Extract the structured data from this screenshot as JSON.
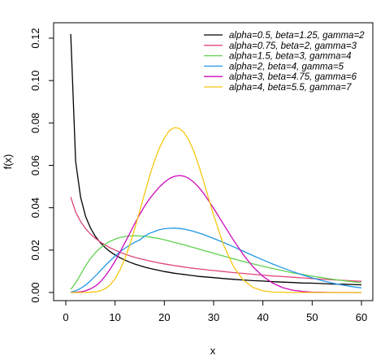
{
  "chart_data": {
    "type": "line",
    "xlabel": "x",
    "ylabel": "f(x)",
    "xlim": [
      0,
      60
    ],
    "ylim": [
      0,
      0.12
    ],
    "x_ticks": [
      "0",
      "10",
      "20",
      "30",
      "40",
      "50",
      "60"
    ],
    "y_ticks": [
      "0.00",
      "0.02",
      "0.04",
      "0.06",
      "0.08",
      "0.10",
      "0.12"
    ],
    "x": [
      1,
      2,
      3,
      4,
      5,
      6,
      7,
      8,
      9,
      10,
      11,
      12,
      13,
      14,
      15,
      16,
      17,
      18,
      19,
      20,
      21,
      22,
      23,
      24,
      25,
      26,
      27,
      28,
      29,
      30,
      32,
      34,
      36,
      38,
      40,
      42,
      44,
      46,
      48,
      50,
      52,
      54,
      56,
      58,
      60
    ],
    "series": [
      {
        "name": "alpha=0.5, beta=1.25, gamma=2",
        "color": "#000000",
        "values": [
          0.122,
          0.062,
          0.045,
          0.036,
          0.0305,
          0.0265,
          0.0235,
          0.0212,
          0.0193,
          0.0177,
          0.0164,
          0.0153,
          0.0143,
          0.0134,
          0.0127,
          0.012,
          0.0114,
          0.0109,
          0.0104,
          0.0099,
          0.0095,
          0.0091,
          0.0088,
          0.0085,
          0.0082,
          0.0079,
          0.0076,
          0.0074,
          0.0072,
          0.007,
          0.0066,
          0.0062,
          0.0059,
          0.0056,
          0.0054,
          0.0051,
          0.0049,
          0.0047,
          0.0045,
          0.0044,
          0.0042,
          0.004,
          0.0039,
          0.0038,
          0.0036
        ]
      },
      {
        "name": "alpha=0.75, beta=2, gamma=3",
        "color": "#e0457b",
        "values": [
          0.045,
          0.038,
          0.0335,
          0.0302,
          0.0276,
          0.0256,
          0.0238,
          0.0224,
          0.0211,
          0.02,
          0.019,
          0.0181,
          0.0173,
          0.0166,
          0.016,
          0.0154,
          0.0149,
          0.0144,
          0.0139,
          0.0135,
          0.0131,
          0.0127,
          0.0124,
          0.012,
          0.0117,
          0.0114,
          0.0111,
          0.0109,
          0.0106,
          0.0104,
          0.0099,
          0.0094,
          0.009,
          0.0086,
          0.0082,
          0.0078,
          0.0075,
          0.0072,
          0.0069,
          0.0066,
          0.0063,
          0.006,
          0.0058,
          0.0055,
          0.0053
        ]
      },
      {
        "name": "alpha=1.5, beta=3, gamma=4",
        "color": "#61d04f",
        "values": [
          0.0015,
          0.0045,
          0.0085,
          0.0125,
          0.016,
          0.0188,
          0.021,
          0.0228,
          0.0242,
          0.0252,
          0.0259,
          0.0264,
          0.0267,
          0.0268,
          0.0267,
          0.0265,
          0.0262,
          0.0258,
          0.0254,
          0.0249,
          0.0243,
          0.0237,
          0.0231,
          0.0225,
          0.0218,
          0.0212,
          0.0205,
          0.0198,
          0.0192,
          0.0185,
          0.0172,
          0.0159,
          0.0147,
          0.0135,
          0.0124,
          0.0113,
          0.0103,
          0.0093,
          0.0085,
          0.0077,
          0.007,
          0.0063,
          0.0057,
          0.0051,
          0.0046
        ]
      },
      {
        "name": "alpha=2, beta=4, gamma=5",
        "color": "#2297e6",
        "values": [
          0.0002,
          0.0008,
          0.0019,
          0.0035,
          0.0055,
          0.0078,
          0.0102,
          0.0127,
          0.015,
          0.0172,
          0.0192,
          0.0209,
          0.0224,
          0.0237,
          0.0248,
          0.0266,
          0.0279,
          0.0288,
          0.0296,
          0.0301,
          0.0303,
          0.0304,
          0.0302,
          0.0299,
          0.0294,
          0.0288,
          0.0281,
          0.0273,
          0.0264,
          0.0255,
          0.0236,
          0.0216,
          0.0195,
          0.0174,
          0.0154,
          0.0134,
          0.0116,
          0.0099,
          0.0083,
          0.0069,
          0.0056,
          0.0045,
          0.0036,
          0.0028,
          0.0022
        ]
      },
      {
        "name": "alpha=3, beta=4.75, gamma=6",
        "color": "#cd0bbc",
        "values": [
          0.0,
          0.0001,
          0.0003,
          0.0008,
          0.0017,
          0.003,
          0.005,
          0.0077,
          0.011,
          0.0148,
          0.019,
          0.0235,
          0.028,
          0.0325,
          0.0368,
          0.0408,
          0.0442,
          0.0471,
          0.0498,
          0.052,
          0.0537,
          0.0548,
          0.0552,
          0.0549,
          0.0538,
          0.052,
          0.0496,
          0.0467,
          0.0433,
          0.0397,
          0.0323,
          0.0248,
          0.0179,
          0.0121,
          0.0076,
          0.0044,
          0.0023,
          0.0011,
          0.0005,
          0.0002,
          0.0001,
          0.0,
          0.0,
          0.0,
          0.0
        ]
      },
      {
        "name": "alpha=4, beta=5.5, gamma=7",
        "color": "#f5c710",
        "values": [
          0.0,
          0.0,
          0.0,
          0.0,
          0.0001,
          0.0003,
          0.0008,
          0.0018,
          0.0036,
          0.0065,
          0.0106,
          0.016,
          0.0226,
          0.0302,
          0.0384,
          0.0468,
          0.0549,
          0.0622,
          0.0682,
          0.0728,
          0.0764,
          0.0778,
          0.0775,
          0.0755,
          0.0718,
          0.0665,
          0.0598,
          0.0522,
          0.0443,
          0.0365,
          0.0226,
          0.0124,
          0.0059,
          0.0024,
          0.0008,
          0.0002,
          0.0001,
          0.0,
          0.0,
          0.0,
          0.0,
          0.0,
          0.0,
          0.0,
          0.0
        ]
      }
    ],
    "legend_position": "top-right",
    "grid": false
  }
}
